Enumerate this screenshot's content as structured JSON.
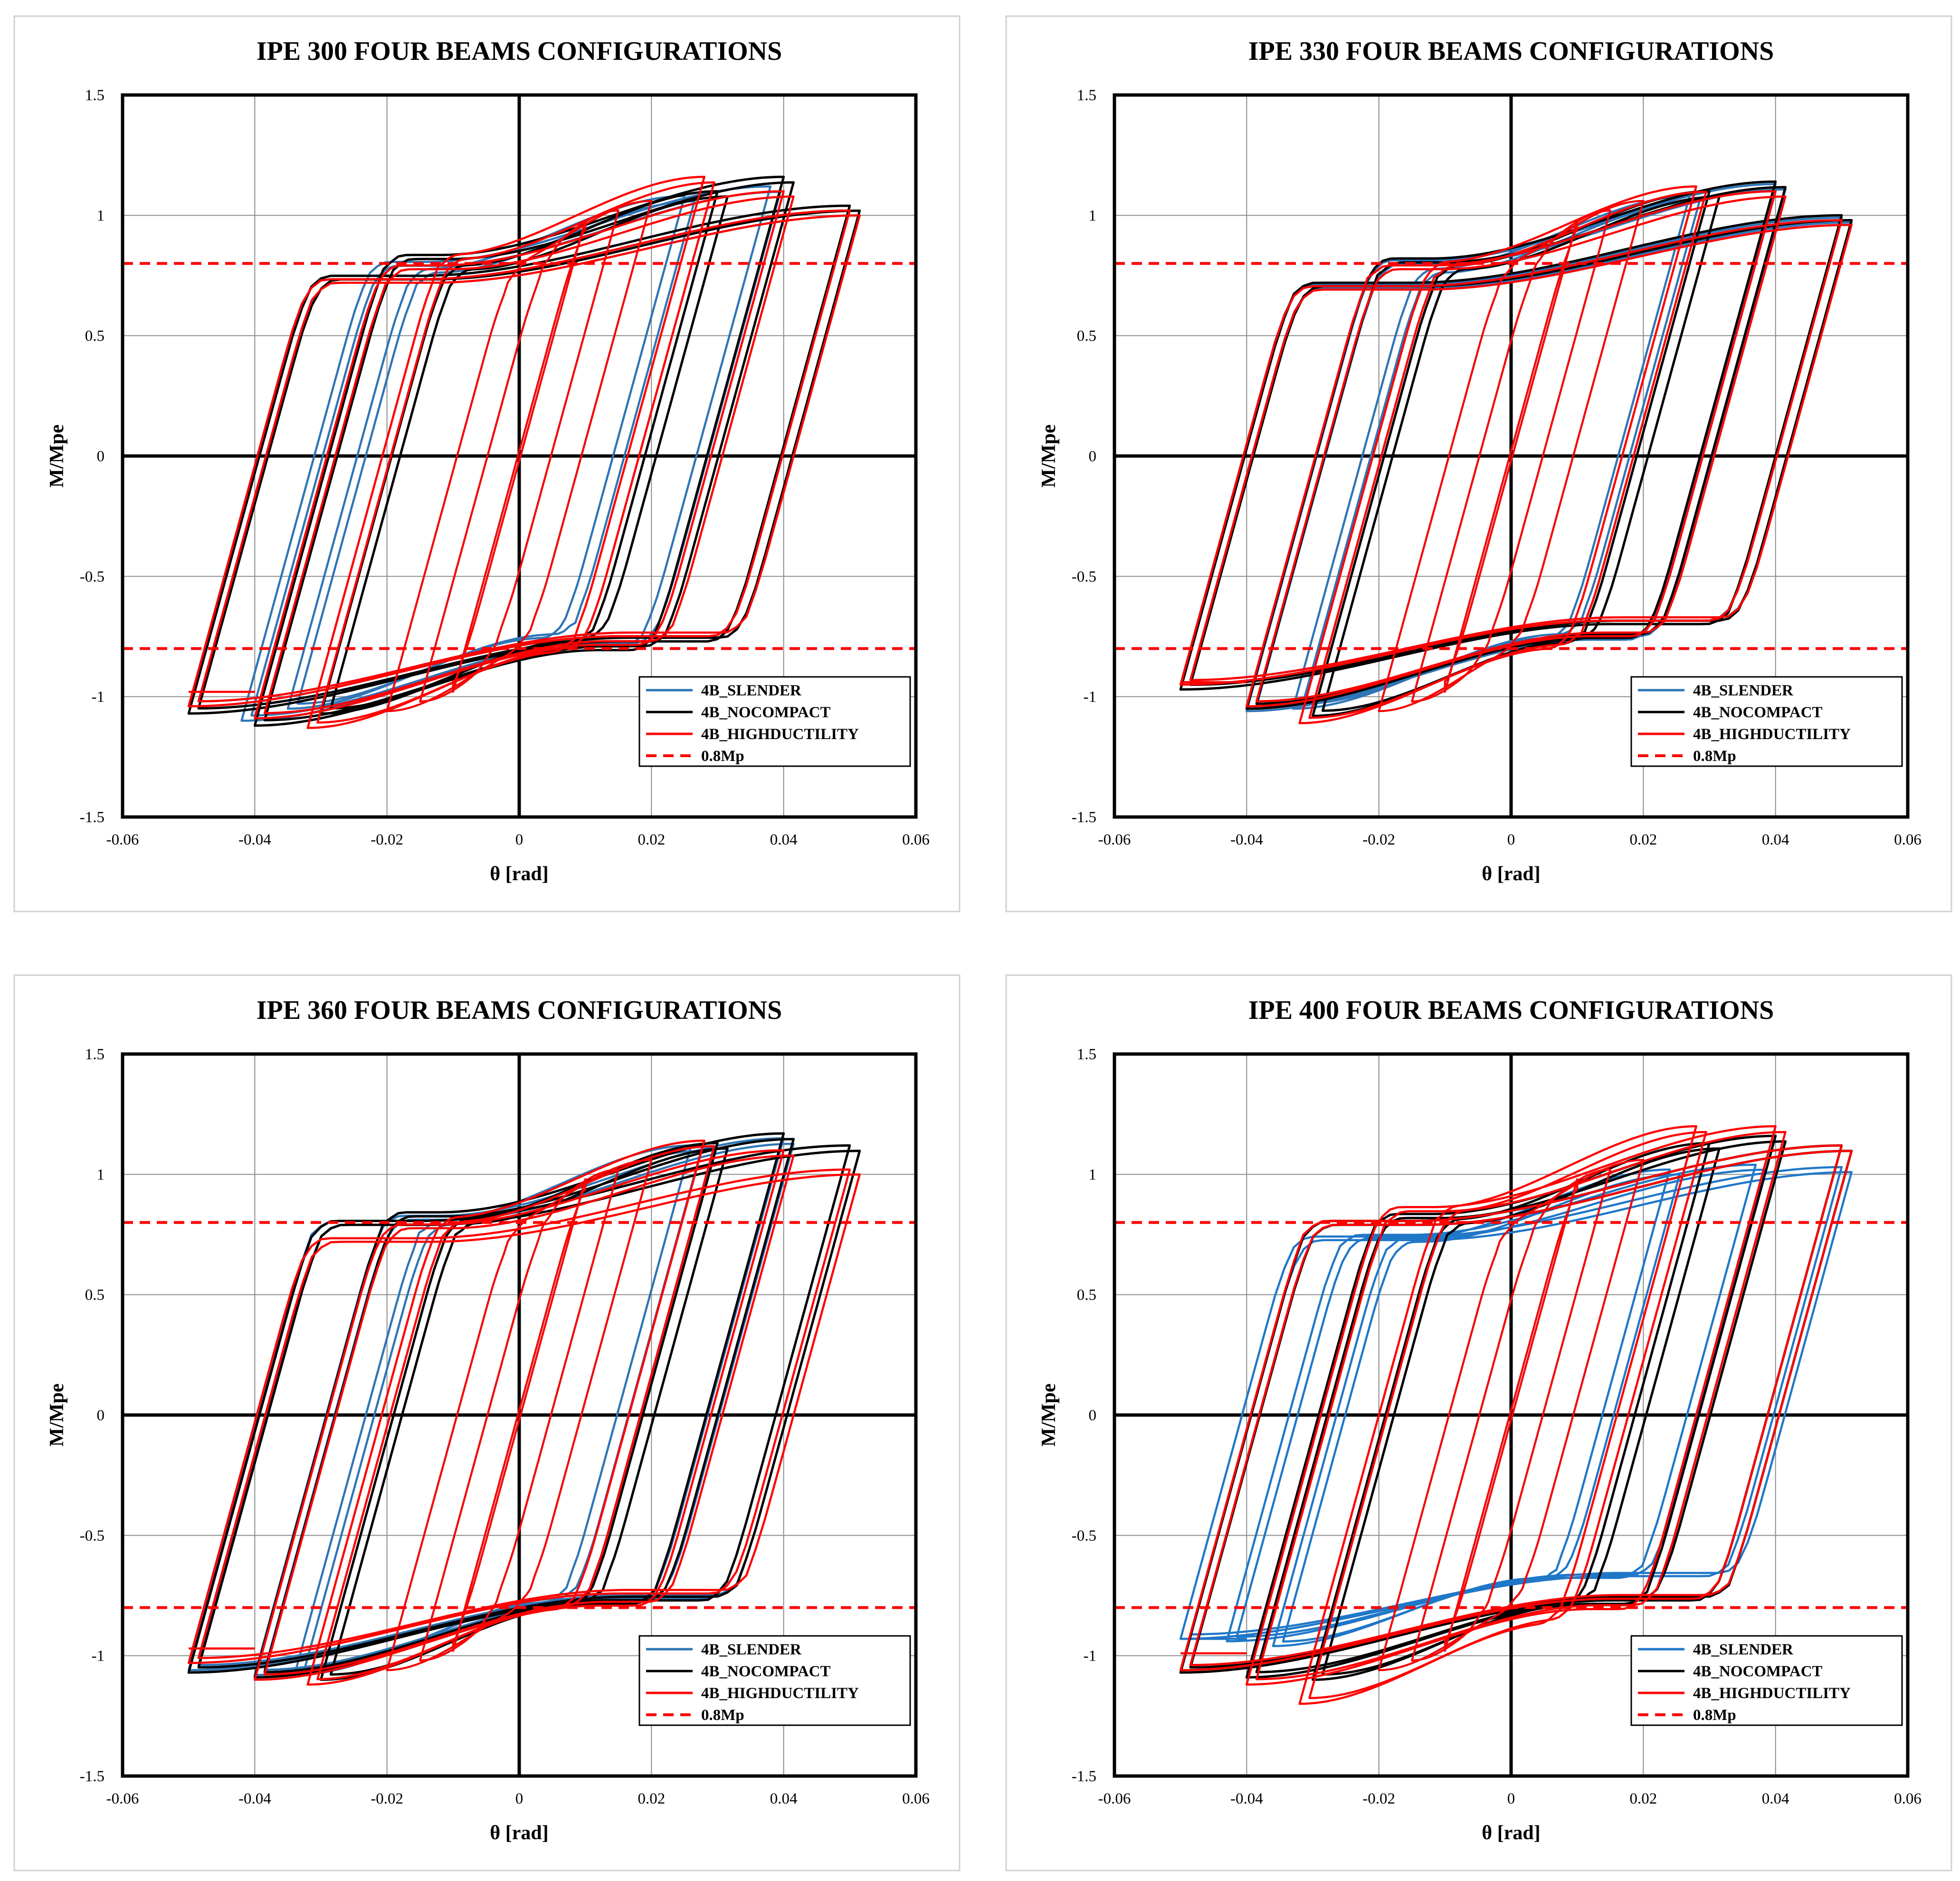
{
  "chart_data": [
    {
      "type": "line",
      "title": "IPE 300 FOUR BEAMS CONFIGURATIONS",
      "xlabel": "θ [rad]",
      "ylabel": "M/Mpe",
      "xlim": [
        -0.06,
        0.06
      ],
      "ylim": [
        -1.5,
        1.5
      ],
      "xticks": [
        "-0.06",
        "-0.04",
        "-0.02",
        "0",
        "0.02",
        "0.04",
        "0.06"
      ],
      "yticks": [
        "1.5",
        "1",
        "0.5",
        "0",
        "-0.5",
        "-1",
        "-1.5"
      ],
      "grid": true,
      "legend_position": "bottom-right",
      "series": [
        {
          "name": "4B_SLENDER",
          "color": "#2e75b6",
          "style": "solid",
          "cycles": [
            [
              0.03,
              1.08,
              -1.05,
              -0.005
            ],
            [
              0.04,
              1.12,
              -1.1,
              -0.002
            ],
            [
              0.05,
              1.02,
              -1.04,
              0.0
            ]
          ]
        },
        {
          "name": "4B_NOCOMPACT",
          "color": "#000000",
          "style": "solid",
          "cycles": [
            [
              0.03,
              1.1,
              -1.07,
              0.0
            ],
            [
              0.04,
              1.16,
              -1.12,
              0.0
            ],
            [
              0.05,
              1.04,
              -1.07,
              0.0
            ]
          ]
        },
        {
          "name": "4B_HIGHDUCTILITY",
          "color": "#ff0000",
          "style": "solid",
          "cycles": [
            [
              0.03,
              1.16,
              -1.13,
              -0.002
            ],
            [
              0.04,
              1.1,
              -1.09,
              0.0
            ],
            [
              0.05,
              1.02,
              -1.04,
              0.0
            ]
          ],
          "tail": [
            [
              -0.04,
              -0.98
            ],
            [
              -0.05,
              -0.98
            ]
          ]
        },
        {
          "name": "0.8Mp",
          "color": "#ff0000",
          "style": "dashed",
          "levels": [
            0.8,
            -0.8
          ]
        }
      ]
    },
    {
      "type": "line",
      "title": "IPE 330 FOUR BEAMS CONFIGURATIONS",
      "xlabel": "θ [rad]",
      "ylabel": "M/Mpe",
      "xlim": [
        -0.06,
        0.06
      ],
      "ylim": [
        -1.5,
        1.5
      ],
      "xticks": [
        "-0.06",
        "-0.04",
        "-0.02",
        "0",
        "0.02",
        "0.04",
        "0.06"
      ],
      "yticks": [
        "1.5",
        "1",
        "0.5",
        "0",
        "-0.5",
        "-1",
        "-1.5"
      ],
      "grid": true,
      "legend_position": "bottom-right",
      "series": [
        {
          "name": "4B_SLENDER",
          "color": "#2e75b6",
          "style": "solid",
          "cycles": [
            [
              0.03,
              1.08,
              -1.05,
              -0.003
            ],
            [
              0.04,
              1.13,
              -1.06,
              0.0
            ],
            [
              0.05,
              0.99,
              -0.95,
              0.0
            ]
          ]
        },
        {
          "name": "4B_NOCOMPACT",
          "color": "#000000",
          "style": "solid",
          "cycles": [
            [
              0.03,
              1.1,
              -1.08,
              0.0
            ],
            [
              0.04,
              1.14,
              -1.05,
              0.0
            ],
            [
              0.05,
              1.0,
              -0.97,
              0.0
            ]
          ]
        },
        {
          "name": "4B_HIGHDUCTILITY",
          "color": "#ff0000",
          "style": "solid",
          "cycles": [
            [
              0.03,
              1.12,
              -1.11,
              -0.002
            ],
            [
              0.04,
              1.1,
              -1.04,
              0.0
            ],
            [
              0.05,
              0.98,
              -0.95,
              0.0
            ]
          ],
          "tail": [
            [
              -0.04,
              -0.94
            ],
            [
              -0.05,
              -0.94
            ]
          ]
        },
        {
          "name": "0.8Mp",
          "color": "#ff0000",
          "style": "dashed",
          "levels": [
            0.8,
            -0.8
          ]
        }
      ]
    },
    {
      "type": "line",
      "title": "IPE 360 FOUR BEAMS CONFIGURATIONS",
      "xlabel": "θ [rad]",
      "ylabel": "M/Mpe",
      "xlim": [
        -0.06,
        0.06
      ],
      "ylim": [
        -1.5,
        1.5
      ],
      "xticks": [
        "-0.06",
        "-0.04",
        "-0.02",
        "0",
        "0.02",
        "0.04",
        "0.06"
      ],
      "yticks": [
        "1.5",
        "1",
        "0.5",
        "0",
        "-0.5",
        "-1",
        "-1.5"
      ],
      "grid": true,
      "legend_position": "bottom-right",
      "series": [
        {
          "name": "4B_SLENDER",
          "color": "#2e75b6",
          "style": "solid",
          "cycles": [
            [
              0.03,
              1.12,
              -1.08,
              -0.004
            ],
            [
              0.04,
              1.15,
              -1.08,
              0.0
            ],
            [
              0.05,
              1.12,
              -1.06,
              0.0
            ]
          ]
        },
        {
          "name": "4B_NOCOMPACT",
          "color": "#000000",
          "style": "solid",
          "cycles": [
            [
              0.03,
              1.13,
              -1.1,
              0.0
            ],
            [
              0.04,
              1.17,
              -1.09,
              0.0
            ],
            [
              0.05,
              1.12,
              -1.07,
              0.0
            ]
          ]
        },
        {
          "name": "4B_HIGHDUCTILITY",
          "color": "#ff0000",
          "style": "solid",
          "cycles": [
            [
              0.03,
              1.14,
              -1.12,
              -0.002
            ],
            [
              0.04,
              1.1,
              -1.1,
              0.0
            ],
            [
              0.05,
              1.02,
              -1.03,
              0.0
            ]
          ],
          "tail": [
            [
              -0.04,
              -0.97
            ],
            [
              -0.05,
              -0.97
            ]
          ]
        },
        {
          "name": "0.8Mp",
          "color": "#ff0000",
          "style": "dashed",
          "levels": [
            0.8,
            -0.8
          ]
        }
      ]
    },
    {
      "type": "line",
      "title": "IPE 400 FOUR BEAMS CONFIGURATIONS",
      "xlabel": "θ [rad]",
      "ylabel": "M/Mpe",
      "xlim": [
        -0.06,
        0.06
      ],
      "ylim": [
        -1.5,
        1.5
      ],
      "xticks": [
        "-0.06",
        "-0.04",
        "-0.02",
        "0",
        "0.02",
        "0.04",
        "0.06"
      ],
      "yticks": [
        "1.5",
        "1",
        "0.5",
        "0",
        "-0.5",
        "-1",
        "-1.5"
      ],
      "grid": true,
      "legend_position": "bottom-right",
      "series": [
        {
          "name": "4B_SLENDER",
          "color": "#1f77c8",
          "style": "solid",
          "cycles": [
            [
              0.03,
              1.02,
              -0.96,
              -0.006
            ],
            [
              0.04,
              1.04,
              -0.94,
              -0.003
            ],
            [
              0.05,
              1.03,
              -0.93,
              0.0
            ]
          ],
          "tail": [
            [
              -0.04,
              -0.93
            ],
            [
              -0.05,
              -0.93
            ]
          ]
        },
        {
          "name": "4B_NOCOMPACT",
          "color": "#000000",
          "style": "solid",
          "cycles": [
            [
              0.03,
              1.13,
              -1.1,
              0.0
            ],
            [
              0.04,
              1.16,
              -1.09,
              0.0
            ],
            [
              0.05,
              1.12,
              -1.07,
              0.0
            ]
          ]
        },
        {
          "name": "4B_HIGHDUCTILITY",
          "color": "#ff0000",
          "style": "solid",
          "cycles": [
            [
              0.03,
              1.2,
              -1.2,
              -0.002
            ],
            [
              0.04,
              1.2,
              -1.12,
              0.0
            ],
            [
              0.05,
              1.12,
              -1.06,
              0.0
            ]
          ],
          "tail": [
            [
              -0.04,
              -0.99
            ],
            [
              -0.05,
              -0.99
            ]
          ]
        },
        {
          "name": "0.8Mp",
          "color": "#ff0000",
          "style": "dashed",
          "levels": [
            0.8,
            -0.8
          ]
        }
      ]
    }
  ]
}
